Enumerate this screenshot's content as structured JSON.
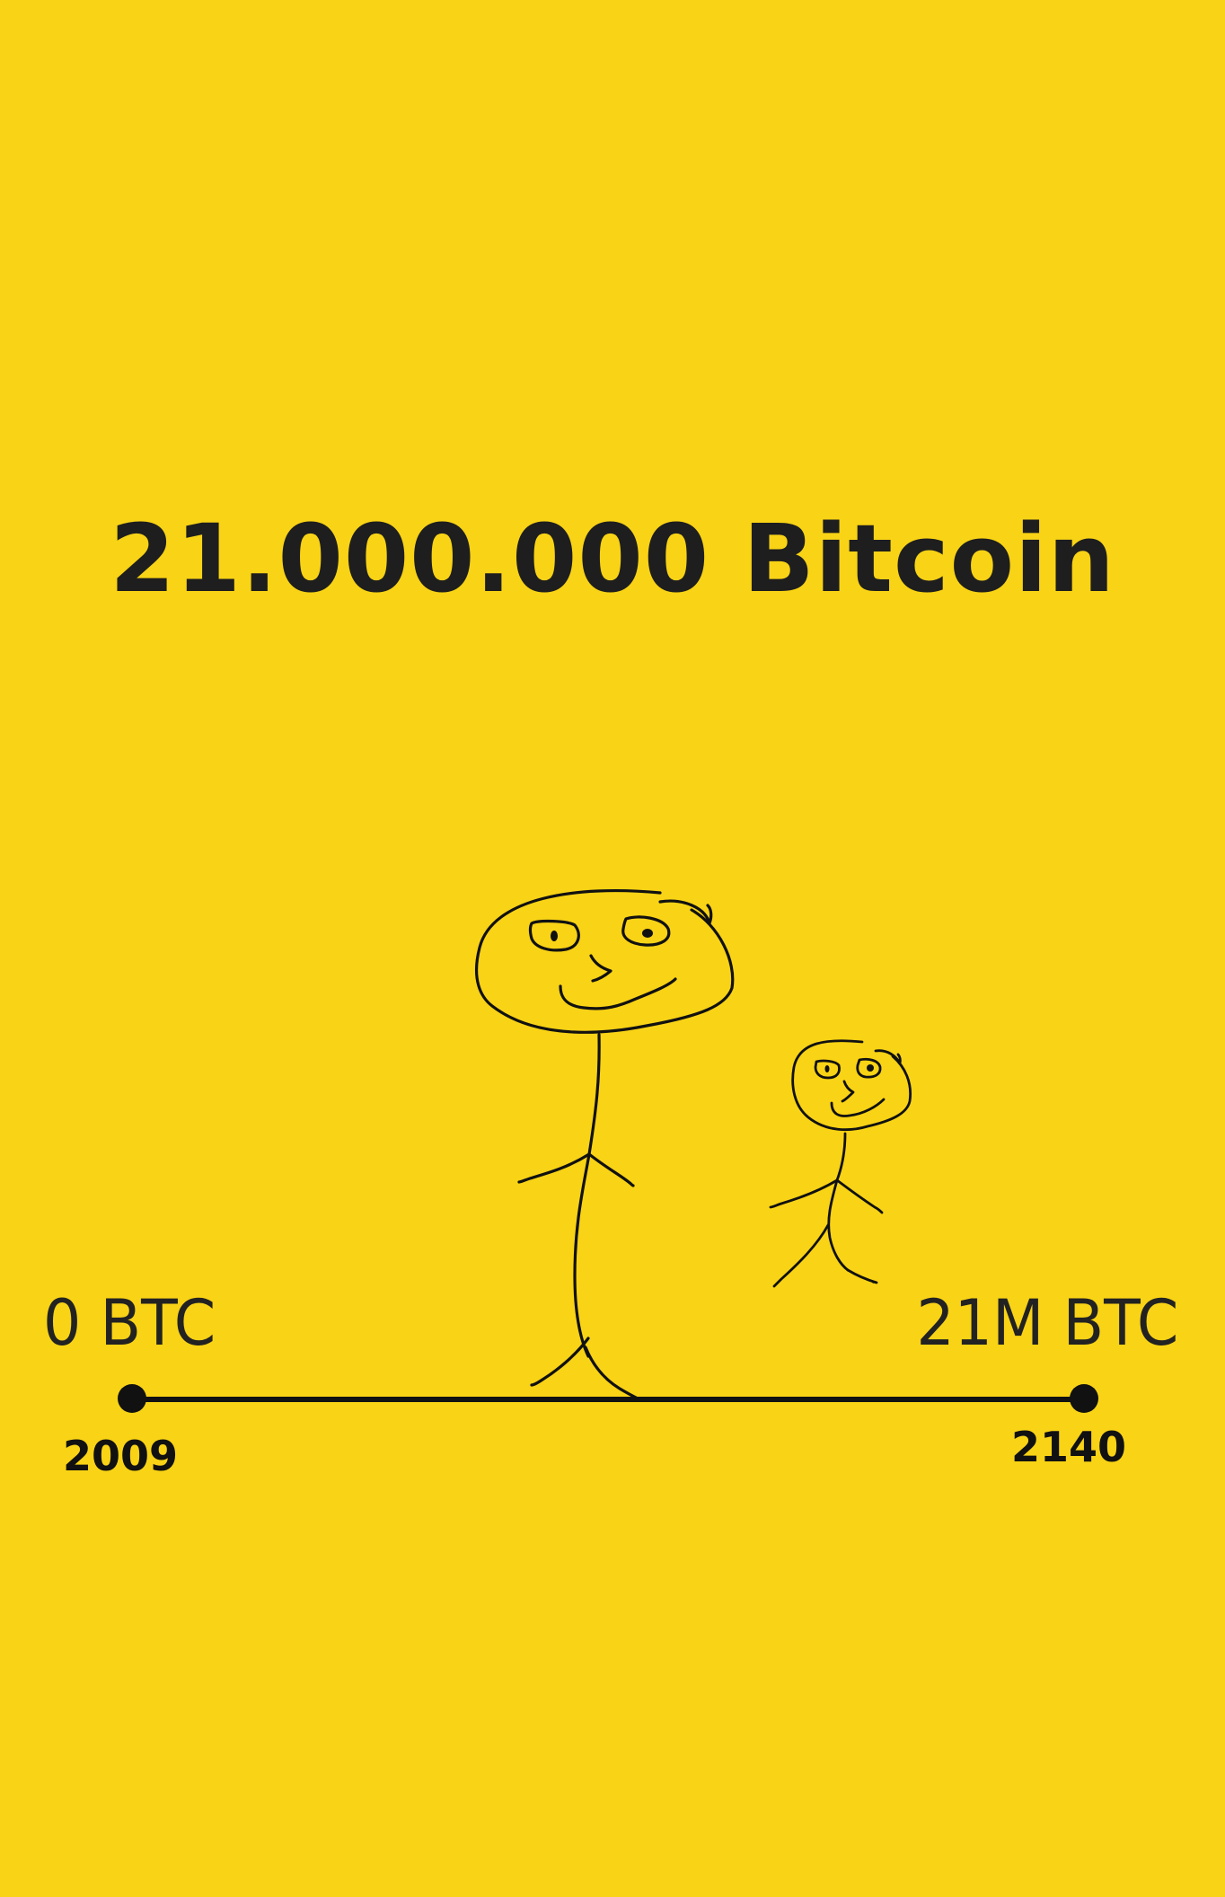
{
  "title": "21.000.000 Bitcoin",
  "timeline": {
    "start_label": "0 BTC",
    "end_label": "21M BTC",
    "start_year": "2009",
    "end_year": "2140"
  },
  "colors": {
    "background": "#F9D315",
    "ink": "#111111"
  }
}
